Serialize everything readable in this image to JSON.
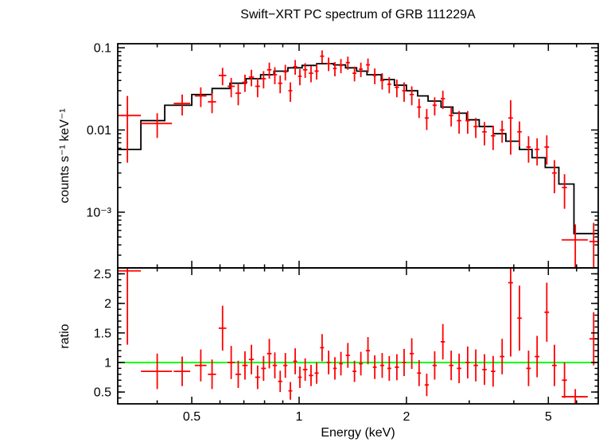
{
  "chart_data": [
    {
      "type": "scatter",
      "title": "Swift−XRT PC spectrum of GRB 111229A",
      "ylabel": "counts s⁻¹ keV⁻¹",
      "xlabel": "",
      "xscale": "log",
      "yscale": "log",
      "xlim": [
        0.31,
        6.9
      ],
      "ylim": [
        0.00021,
        0.112
      ],
      "xticks": [
        {
          "v": 0.5,
          "label": "0.5"
        },
        {
          "v": 1,
          "label": "1"
        },
        {
          "v": 2,
          "label": "2"
        },
        {
          "v": 5,
          "label": "5"
        }
      ],
      "xminor": [
        0.4,
        0.6,
        0.7,
        0.8,
        0.9,
        3,
        4,
        6
      ],
      "yticks": [
        {
          "v": 0.1,
          "label": "0.1"
        },
        {
          "v": 0.01,
          "label": "0.01"
        },
        {
          "v": 0.001,
          "label": "10⁻³"
        }
      ],
      "grid": false,
      "point_color": "#ff0000",
      "model_color": "#000000",
      "model_steps": [
        [
          0.31,
          0.36,
          0.0058
        ],
        [
          0.36,
          0.42,
          0.013
        ],
        [
          0.42,
          0.5,
          0.02
        ],
        [
          0.5,
          0.57,
          0.027
        ],
        [
          0.57,
          0.64,
          0.032
        ],
        [
          0.64,
          0.71,
          0.037
        ],
        [
          0.71,
          0.78,
          0.042
        ],
        [
          0.78,
          0.85,
          0.047
        ],
        [
          0.85,
          0.93,
          0.052
        ],
        [
          0.93,
          1.02,
          0.057
        ],
        [
          1.02,
          1.12,
          0.061
        ],
        [
          1.12,
          1.25,
          0.064
        ],
        [
          1.25,
          1.35,
          0.062
        ],
        [
          1.35,
          1.45,
          0.057
        ],
        [
          1.45,
          1.55,
          0.052
        ],
        [
          1.55,
          1.7,
          0.047
        ],
        [
          1.7,
          1.85,
          0.041
        ],
        [
          1.85,
          2.0,
          0.035
        ],
        [
          2.0,
          2.15,
          0.03
        ],
        [
          2.15,
          2.3,
          0.026
        ],
        [
          2.3,
          2.5,
          0.0225
        ],
        [
          2.5,
          2.7,
          0.019
        ],
        [
          2.7,
          2.95,
          0.016
        ],
        [
          2.95,
          3.2,
          0.0133
        ],
        [
          3.2,
          3.5,
          0.011
        ],
        [
          3.5,
          3.8,
          0.009
        ],
        [
          3.8,
          4.15,
          0.0073
        ],
        [
          4.15,
          4.5,
          0.0058
        ],
        [
          4.5,
          4.9,
          0.0046
        ],
        [
          4.9,
          5.35,
          0.0035
        ],
        [
          5.35,
          5.9,
          0.0022
        ],
        [
          5.9,
          6.9,
          0.00055
        ]
      ],
      "points": [
        [
          0.33,
          0.03,
          0.015,
          0.011
        ],
        [
          0.4,
          0.04,
          0.012,
          0.004
        ],
        [
          0.47,
          0.025,
          0.021,
          0.006
        ],
        [
          0.53,
          0.02,
          0.026,
          0.007
        ],
        [
          0.57,
          0.015,
          0.022,
          0.006
        ],
        [
          0.61,
          0.015,
          0.046,
          0.011
        ],
        [
          0.645,
          0.015,
          0.034,
          0.009
        ],
        [
          0.675,
          0.012,
          0.028,
          0.008
        ],
        [
          0.705,
          0.012,
          0.038,
          0.009
        ],
        [
          0.735,
          0.012,
          0.044,
          0.01
        ],
        [
          0.765,
          0.012,
          0.034,
          0.009
        ],
        [
          0.795,
          0.012,
          0.042,
          0.01
        ],
        [
          0.825,
          0.012,
          0.054,
          0.012
        ],
        [
          0.855,
          0.012,
          0.047,
          0.011
        ],
        [
          0.885,
          0.012,
          0.037,
          0.009
        ],
        [
          0.915,
          0.012,
          0.051,
          0.011
        ],
        [
          0.945,
          0.012,
          0.03,
          0.008
        ],
        [
          0.975,
          0.012,
          0.059,
          0.012
        ],
        [
          1.005,
          0.012,
          0.045,
          0.01
        ],
        [
          1.04,
          0.015,
          0.054,
          0.011
        ],
        [
          1.08,
          0.015,
          0.049,
          0.011
        ],
        [
          1.12,
          0.015,
          0.052,
          0.011
        ],
        [
          1.16,
          0.015,
          0.079,
          0.014
        ],
        [
          1.21,
          0.015,
          0.064,
          0.012
        ],
        [
          1.26,
          0.015,
          0.056,
          0.011
        ],
        [
          1.31,
          0.015,
          0.061,
          0.012
        ],
        [
          1.37,
          0.018,
          0.066,
          0.012
        ],
        [
          1.43,
          0.018,
          0.049,
          0.01
        ],
        [
          1.49,
          0.018,
          0.055,
          0.011
        ],
        [
          1.56,
          0.02,
          0.062,
          0.012
        ],
        [
          1.63,
          0.02,
          0.046,
          0.01
        ],
        [
          1.71,
          0.022,
          0.04,
          0.009
        ],
        [
          1.79,
          0.022,
          0.036,
          0.008
        ],
        [
          1.88,
          0.025,
          0.033,
          0.008
        ],
        [
          1.97,
          0.025,
          0.03,
          0.008
        ],
        [
          2.07,
          0.028,
          0.027,
          0.007
        ],
        [
          2.17,
          0.028,
          0.019,
          0.005
        ],
        [
          2.28,
          0.03,
          0.014,
          0.004
        ],
        [
          2.4,
          0.033,
          0.02,
          0.005
        ],
        [
          2.53,
          0.035,
          0.024,
          0.006
        ],
        [
          2.67,
          0.038,
          0.015,
          0.004
        ],
        [
          2.81,
          0.04,
          0.013,
          0.004
        ],
        [
          2.97,
          0.042,
          0.013,
          0.004
        ],
        [
          3.13,
          0.045,
          0.011,
          0.003
        ],
        [
          3.31,
          0.048,
          0.0095,
          0.003
        ],
        [
          3.5,
          0.05,
          0.0085,
          0.0028
        ],
        [
          3.71,
          0.055,
          0.01,
          0.003
        ],
        [
          3.92,
          0.06,
          0.014,
          0.009
        ],
        [
          4.15,
          0.06,
          0.0095,
          0.0032
        ],
        [
          4.4,
          0.065,
          0.0062,
          0.0022
        ],
        [
          4.65,
          0.07,
          0.0058,
          0.0021
        ],
        [
          4.95,
          0.075,
          0.0062,
          0.0024
        ],
        [
          5.2,
          0.08,
          0.003,
          0.0013
        ],
        [
          5.55,
          0.09,
          0.002,
          0.0009
        ],
        [
          5.95,
          0.5,
          0.00046,
          0.00025
        ],
        [
          6.7,
          0.18,
          0.00044,
          0.0003
        ]
      ]
    },
    {
      "type": "scatter",
      "title": "",
      "ylabel": "ratio",
      "xlabel": "Energy (keV)",
      "xscale": "log",
      "yscale": "linear",
      "xlim": [
        0.31,
        6.9
      ],
      "ylim": [
        0.3,
        2.6
      ],
      "xticks": [
        {
          "v": 0.5,
          "label": "0.5"
        },
        {
          "v": 1,
          "label": "1"
        },
        {
          "v": 2,
          "label": "2"
        },
        {
          "v": 5,
          "label": "5"
        }
      ],
      "xminor": [
        0.4,
        0.6,
        0.7,
        0.8,
        0.9,
        3,
        4,
        6
      ],
      "yticks": [
        {
          "v": 0.5,
          "label": "0.5"
        },
        {
          "v": 1,
          "label": "1"
        },
        {
          "v": 1.5,
          "label": "1.5"
        },
        {
          "v": 2,
          "label": "2"
        },
        {
          "v": 2.5,
          "label": "2.5"
        }
      ],
      "yminor_step": 0.1,
      "grid": false,
      "reference_line": {
        "y": 1,
        "color": "#00ff00"
      },
      "point_color": "#ff0000",
      "points": [
        [
          0.33,
          0.03,
          2.55,
          1.25
        ],
        [
          0.4,
          0.04,
          0.85,
          0.3
        ],
        [
          0.47,
          0.025,
          0.85,
          0.25
        ],
        [
          0.53,
          0.02,
          0.95,
          0.27
        ],
        [
          0.57,
          0.015,
          0.8,
          0.25
        ],
        [
          0.61,
          0.015,
          1.58,
          0.38
        ],
        [
          0.645,
          0.015,
          1.0,
          0.28
        ],
        [
          0.675,
          0.012,
          0.8,
          0.23
        ],
        [
          0.705,
          0.012,
          0.95,
          0.24
        ],
        [
          0.735,
          0.012,
          1.05,
          0.25
        ],
        [
          0.765,
          0.012,
          0.75,
          0.2
        ],
        [
          0.795,
          0.012,
          0.9,
          0.21
        ],
        [
          0.825,
          0.012,
          1.15,
          0.25
        ],
        [
          0.855,
          0.012,
          0.95,
          0.22
        ],
        [
          0.885,
          0.012,
          0.68,
          0.18
        ],
        [
          0.915,
          0.012,
          0.95,
          0.21
        ],
        [
          0.945,
          0.012,
          0.52,
          0.15
        ],
        [
          0.975,
          0.012,
          1.02,
          0.22
        ],
        [
          1.005,
          0.012,
          0.75,
          0.18
        ],
        [
          1.04,
          0.015,
          0.88,
          0.19
        ],
        [
          1.08,
          0.015,
          0.78,
          0.18
        ],
        [
          1.12,
          0.015,
          0.82,
          0.18
        ],
        [
          1.16,
          0.015,
          1.25,
          0.23
        ],
        [
          1.21,
          0.015,
          1.0,
          0.2
        ],
        [
          1.26,
          0.015,
          0.9,
          0.19
        ],
        [
          1.31,
          0.015,
          0.98,
          0.2
        ],
        [
          1.37,
          0.018,
          1.12,
          0.21
        ],
        [
          1.43,
          0.018,
          0.85,
          0.18
        ],
        [
          1.49,
          0.018,
          0.98,
          0.2
        ],
        [
          1.56,
          0.02,
          1.2,
          0.23
        ],
        [
          1.63,
          0.02,
          0.92,
          0.2
        ],
        [
          1.71,
          0.022,
          0.95,
          0.21
        ],
        [
          1.79,
          0.022,
          0.9,
          0.21
        ],
        [
          1.88,
          0.025,
          0.92,
          0.22
        ],
        [
          1.97,
          0.025,
          1.0,
          0.23
        ],
        [
          2.07,
          0.028,
          1.15,
          0.26
        ],
        [
          2.17,
          0.028,
          0.82,
          0.22
        ],
        [
          2.28,
          0.03,
          0.62,
          0.19
        ],
        [
          2.4,
          0.033,
          0.95,
          0.24
        ],
        [
          2.53,
          0.035,
          1.35,
          0.3
        ],
        [
          2.67,
          0.038,
          0.95,
          0.25
        ],
        [
          2.81,
          0.04,
          0.9,
          0.25
        ],
        [
          2.97,
          0.042,
          1.0,
          0.27
        ],
        [
          3.13,
          0.045,
          0.95,
          0.27
        ],
        [
          3.31,
          0.048,
          0.88,
          0.26
        ],
        [
          3.5,
          0.05,
          0.85,
          0.26
        ],
        [
          3.71,
          0.055,
          1.1,
          0.3
        ],
        [
          3.92,
          0.06,
          2.35,
          1.25
        ],
        [
          4.15,
          0.06,
          1.75,
          0.55
        ],
        [
          4.4,
          0.065,
          0.9,
          0.3
        ],
        [
          4.65,
          0.07,
          1.1,
          0.35
        ],
        [
          4.95,
          0.075,
          1.85,
          0.5
        ],
        [
          5.2,
          0.08,
          0.95,
          0.35
        ],
        [
          5.55,
          0.09,
          0.7,
          0.3
        ],
        [
          5.95,
          0.5,
          0.42,
          0.13
        ],
        [
          6.7,
          0.18,
          1.4,
          0.45
        ]
      ]
    }
  ]
}
